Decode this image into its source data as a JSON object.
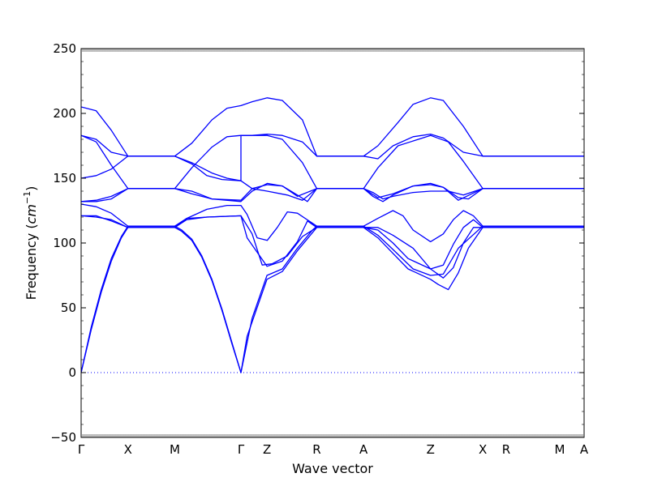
{
  "chart_data": {
    "type": "line",
    "xlabel": "Wave vector",
    "ylabel": "Frequency (cm⁻¹)",
    "ylabel_prefix": "Frequency (",
    "ylabel_unit": "cm",
    "ylabel_exp": "−1",
    "ylabel_suffix": ")",
    "ylim": [
      -50,
      250
    ],
    "yticks": [
      -50,
      0,
      50,
      100,
      150,
      200,
      250
    ],
    "ytick_labels": [
      "−50",
      "0",
      "50",
      "100",
      "150",
      "200",
      "250"
    ],
    "xlim": [
      0,
      1
    ],
    "xticks": [
      {
        "label": "Γ",
        "x": 0.0
      },
      {
        "label": "X",
        "x": 0.0931
      },
      {
        "label": "M",
        "x": 0.1862
      },
      {
        "label": "Γ",
        "x": 0.3178
      },
      {
        "label": "Z",
        "x": 0.3695
      },
      {
        "label": "R",
        "x": 0.4685
      },
      {
        "label": "A",
        "x": 0.5616
      },
      {
        "label": "Z",
        "x": 0.6947
      },
      {
        "label": "X",
        "x": 0.7986
      },
      {
        "label": "R",
        "x": 0.8451
      },
      {
        "label": "M",
        "x": 0.9516
      },
      {
        "label": "A",
        "x": 1.0
      }
    ],
    "zero_line": true,
    "line_color": "#0000ff",
    "series": [
      {
        "points": [
          [
            0,
            205
          ],
          [
            0.03,
            202
          ],
          [
            0.06,
            187
          ],
          [
            0.0931,
            167
          ],
          [
            0.1862,
            167
          ],
          [
            0.22,
            177
          ],
          [
            0.26,
            195
          ],
          [
            0.29,
            204
          ],
          [
            0.3178,
            206
          ],
          [
            0.34,
            209
          ],
          [
            0.37,
            212
          ],
          [
            0.4,
            210
          ],
          [
            0.44,
            195
          ],
          [
            0.4685,
            167
          ],
          [
            0.5616,
            167
          ],
          [
            0.59,
            175
          ],
          [
            0.63,
            193
          ],
          [
            0.66,
            207
          ],
          [
            0.6947,
            212
          ],
          [
            0.72,
            210
          ],
          [
            0.76,
            190
          ],
          [
            0.7986,
            167
          ],
          [
            1.0,
            167
          ]
        ]
      },
      {
        "points": [
          [
            0,
            183
          ],
          [
            0.03,
            180
          ],
          [
            0.06,
            170
          ],
          [
            0.0931,
            167
          ],
          [
            0.1862,
            167
          ],
          [
            0.22,
            162
          ],
          [
            0.26,
            154
          ],
          [
            0.29,
            150
          ],
          [
            0.3178,
            148
          ],
          [
            0.34,
            142
          ],
          [
            0.37,
            140
          ],
          [
            0.41,
            137
          ],
          [
            0.44,
            133
          ],
          [
            0.4685,
            142
          ],
          [
            0.5616,
            142
          ],
          [
            0.58,
            139
          ],
          [
            0.6,
            134
          ],
          [
            0.62,
            136
          ],
          [
            0.66,
            139
          ],
          [
            0.6947,
            140
          ],
          [
            0.73,
            140
          ],
          [
            0.76,
            137
          ],
          [
            0.7986,
            142
          ],
          [
            1.0,
            142
          ]
        ]
      },
      {
        "points": [
          [
            0,
            150
          ],
          [
            0.03,
            152
          ],
          [
            0.06,
            157
          ],
          [
            0.0931,
            167
          ],
          [
            0.1862,
            167
          ],
          [
            0.22,
            161
          ],
          [
            0.25,
            152
          ],
          [
            0.28,
            149
          ],
          [
            0.3178,
            148
          ],
          [
            0.3178,
            183
          ],
          [
            0.34,
            183
          ],
          [
            0.37,
            184
          ],
          [
            0.4,
            183
          ],
          [
            0.44,
            178
          ],
          [
            0.4685,
            167
          ],
          [
            0.5616,
            167
          ],
          [
            0.59,
            165
          ],
          [
            0.62,
            175
          ],
          [
            0.66,
            182
          ],
          [
            0.6947,
            184
          ],
          [
            0.72,
            181
          ],
          [
            0.76,
            170
          ],
          [
            0.7986,
            167
          ],
          [
            1.0,
            167
          ]
        ]
      },
      {
        "points": [
          [
            0,
            183
          ],
          [
            0.03,
            178
          ],
          [
            0.06,
            160
          ],
          [
            0.0931,
            142
          ],
          [
            0.1862,
            142
          ],
          [
            0.22,
            158
          ],
          [
            0.26,
            174
          ],
          [
            0.29,
            182
          ],
          [
            0.3178,
            183
          ],
          [
            0.34,
            183
          ],
          [
            0.37,
            183
          ],
          [
            0.4,
            180
          ],
          [
            0.44,
            162
          ],
          [
            0.4685,
            142
          ],
          [
            0.5616,
            142
          ],
          [
            0.59,
            158
          ],
          [
            0.63,
            175
          ],
          [
            0.6947,
            183
          ],
          [
            0.73,
            178
          ],
          [
            0.76,
            163
          ],
          [
            0.7986,
            142
          ],
          [
            1.0,
            142
          ]
        ]
      },
      {
        "points": [
          [
            0,
            132
          ],
          [
            0.03,
            132
          ],
          [
            0.06,
            134
          ],
          [
            0.0931,
            142
          ],
          [
            0.1862,
            142
          ],
          [
            0.22,
            138
          ],
          [
            0.26,
            134
          ],
          [
            0.3178,
            133
          ],
          [
            0.34,
            142
          ],
          [
            0.37,
            145
          ],
          [
            0.4,
            144
          ],
          [
            0.43,
            137
          ],
          [
            0.45,
            132
          ],
          [
            0.4685,
            142
          ],
          [
            0.5616,
            142
          ],
          [
            0.58,
            136
          ],
          [
            0.6,
            132
          ],
          [
            0.62,
            137
          ],
          [
            0.66,
            144
          ],
          [
            0.6947,
            146
          ],
          [
            0.72,
            143
          ],
          [
            0.75,
            135
          ],
          [
            0.77,
            134
          ],
          [
            0.7986,
            142
          ],
          [
            1.0,
            142
          ]
        ]
      },
      {
        "points": [
          [
            0,
            132
          ],
          [
            0.03,
            133
          ],
          [
            0.06,
            136
          ],
          [
            0.0931,
            142
          ],
          [
            0.1862,
            142
          ],
          [
            0.22,
            140
          ],
          [
            0.26,
            134
          ],
          [
            0.3178,
            132
          ],
          [
            0.34,
            140
          ],
          [
            0.37,
            146
          ],
          [
            0.4,
            144
          ],
          [
            0.43,
            136
          ],
          [
            0.4685,
            142
          ],
          [
            0.5616,
            142
          ],
          [
            0.59,
            135
          ],
          [
            0.62,
            138
          ],
          [
            0.66,
            144
          ],
          [
            0.6947,
            145
          ],
          [
            0.72,
            143
          ],
          [
            0.75,
            133
          ],
          [
            0.7986,
            142
          ],
          [
            1.0,
            142
          ]
        ]
      },
      {
        "points": [
          [
            0,
            130
          ],
          [
            0.03,
            128
          ],
          [
            0.06,
            123
          ],
          [
            0.0931,
            113
          ],
          [
            0.1862,
            113
          ],
          [
            0.21,
            119
          ],
          [
            0.25,
            126
          ],
          [
            0.29,
            129
          ],
          [
            0.3178,
            129
          ],
          [
            0.33,
            122
          ],
          [
            0.35,
            104
          ],
          [
            0.37,
            102
          ],
          [
            0.39,
            112
          ],
          [
            0.41,
            124
          ],
          [
            0.43,
            123
          ],
          [
            0.4685,
            113
          ],
          [
            0.5616,
            113
          ],
          [
            0.59,
            119
          ],
          [
            0.62,
            125
          ],
          [
            0.64,
            121
          ],
          [
            0.66,
            110
          ],
          [
            0.6947,
            101
          ],
          [
            0.72,
            107
          ],
          [
            0.74,
            118
          ],
          [
            0.76,
            125
          ],
          [
            0.78,
            121
          ],
          [
            0.7986,
            113
          ],
          [
            1.0,
            113
          ]
        ]
      },
      {
        "points": [
          [
            0,
            121
          ],
          [
            0.03,
            120
          ],
          [
            0.06,
            118
          ],
          [
            0.0931,
            112
          ],
          [
            0.1862,
            112
          ],
          [
            0.21,
            118
          ],
          [
            0.25,
            120
          ],
          [
            0.3178,
            121
          ],
          [
            0.34,
            107
          ],
          [
            0.36,
            83
          ],
          [
            0.38,
            84
          ],
          [
            0.41,
            90
          ],
          [
            0.44,
            105
          ],
          [
            0.4685,
            112
          ],
          [
            0.5616,
            112
          ],
          [
            0.59,
            110
          ],
          [
            0.62,
            100
          ],
          [
            0.65,
            88
          ],
          [
            0.6947,
            80
          ],
          [
            0.72,
            73
          ],
          [
            0.74,
            81
          ],
          [
            0.76,
            100
          ],
          [
            0.78,
            112
          ],
          [
            0.7986,
            112
          ],
          [
            1.0,
            112
          ]
        ]
      },
      {
        "points": [
          [
            0,
            121
          ],
          [
            0.03,
            121
          ],
          [
            0.06,
            117
          ],
          [
            0.0931,
            112
          ],
          [
            0.1862,
            112
          ],
          [
            0.21,
            119
          ],
          [
            0.25,
            120
          ],
          [
            0.3178,
            121
          ],
          [
            0.33,
            104
          ],
          [
            0.3695,
            82
          ],
          [
            0.4,
            86
          ],
          [
            0.43,
            101
          ],
          [
            0.45,
            117
          ],
          [
            0.4685,
            112
          ],
          [
            0.5616,
            112
          ],
          [
            0.59,
            112
          ],
          [
            0.62,
            106
          ],
          [
            0.66,
            96
          ],
          [
            0.6947,
            80
          ],
          [
            0.72,
            83
          ],
          [
            0.74,
            99
          ],
          [
            0.76,
            112
          ],
          [
            0.78,
            118
          ],
          [
            0.7986,
            112
          ],
          [
            1.0,
            112
          ]
        ]
      },
      {
        "points": [
          [
            0,
            0
          ],
          [
            0.02,
            33
          ],
          [
            0.04,
            62
          ],
          [
            0.06,
            86
          ],
          [
            0.08,
            104
          ],
          [
            0.0931,
            112
          ],
          [
            0.1862,
            112
          ],
          [
            0.2,
            109
          ],
          [
            0.22,
            102
          ],
          [
            0.24,
            89
          ],
          [
            0.26,
            71
          ],
          [
            0.28,
            48
          ],
          [
            0.3,
            22
          ],
          [
            0.3178,
            0
          ],
          [
            0.33,
            28
          ],
          [
            0.3695,
            72
          ],
          [
            0.4,
            78
          ],
          [
            0.43,
            94
          ],
          [
            0.46,
            108
          ],
          [
            0.4685,
            112
          ],
          [
            0.5616,
            112
          ],
          [
            0.59,
            104
          ],
          [
            0.62,
            92
          ],
          [
            0.65,
            80
          ],
          [
            0.6947,
            72
          ],
          [
            0.71,
            68
          ],
          [
            0.73,
            64
          ],
          [
            0.75,
            77
          ],
          [
            0.77,
            96
          ],
          [
            0.7986,
            112
          ],
          [
            1.0,
            112
          ]
        ]
      },
      {
        "points": [
          [
            0,
            0
          ],
          [
            0.02,
            35
          ],
          [
            0.04,
            64
          ],
          [
            0.06,
            88
          ],
          [
            0.08,
            105
          ],
          [
            0.0931,
            113
          ],
          [
            0.1862,
            113
          ],
          [
            0.2,
            110
          ],
          [
            0.22,
            103
          ],
          [
            0.24,
            90
          ],
          [
            0.26,
            72
          ],
          [
            0.28,
            49
          ],
          [
            0.3,
            23
          ],
          [
            0.3178,
            0
          ],
          [
            0.34,
            42
          ],
          [
            0.3695,
            75
          ],
          [
            0.4,
            80
          ],
          [
            0.43,
            96
          ],
          [
            0.46,
            110
          ],
          [
            0.4685,
            113
          ],
          [
            0.5616,
            113
          ],
          [
            0.59,
            106
          ],
          [
            0.62,
            95
          ],
          [
            0.66,
            80
          ],
          [
            0.6947,
            75
          ],
          [
            0.72,
            76
          ],
          [
            0.75,
            96
          ],
          [
            0.7986,
            113
          ],
          [
            1.0,
            113
          ]
        ]
      }
    ]
  }
}
